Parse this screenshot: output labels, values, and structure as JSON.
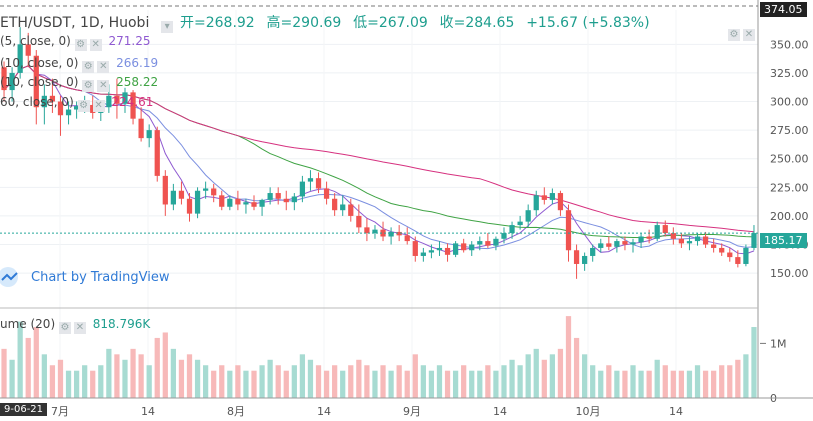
{
  "header": {
    "symbol": "ETH/USDT, 1D, Huobi",
    "open": "开=268.92",
    "high": "高=290.69",
    "low": "低=267.09",
    "close": "收=284.65",
    "change": "+15.67 (+5.83%)"
  },
  "indicators": [
    {
      "label": "(5, close, 0)",
      "value": "271.25",
      "color": "#8f5ad1"
    },
    {
      "label": "(10, close, 0)",
      "value": "266.19",
      "color": "#7b8fe0"
    },
    {
      "label": "(10, close, 0)",
      "value": "258.22",
      "color": "#3fa344"
    },
    {
      "label": "60, close, 0)",
      "value": "224.61",
      "color": "#d6317f"
    }
  ],
  "volume_legend": {
    "label": "ume (20)",
    "value": "818.796K"
  },
  "watermark": "Chart by TradingView",
  "price_tags": {
    "top": "374.05",
    "last": "185.17"
  },
  "date_labels": {
    "start": "9-06-21"
  },
  "colors": {
    "up": "#26a69a",
    "down": "#ef5350",
    "up_vol": "#a7dbd2",
    "down_vol": "#f7b9b9",
    "ma5": "#8f5ad1",
    "ma10": "#7b8fe0",
    "ma30": "#3fa344",
    "ma60": "#d6317f"
  },
  "chart_data": {
    "type": "candlestick",
    "title": "ETH/USDT, 1D, Huobi",
    "y_ticks": [
      "350.00",
      "325.00",
      "300.00",
      "275.00",
      "250.00",
      "225.00",
      "200.00",
      "175.00",
      "150.00"
    ],
    "y_range": [
      130,
      380
    ],
    "volume_ticks": [
      "1M",
      "0"
    ],
    "x_ticks": [
      "7月",
      "14",
      "8月",
      "14",
      "9月",
      "14",
      "10月",
      "14"
    ],
    "ohlc": [
      [
        330,
        335,
        300,
        310
      ],
      [
        310,
        330,
        300,
        325
      ],
      [
        325,
        365,
        320,
        350
      ],
      [
        350,
        360,
        330,
        340
      ],
      [
        340,
        345,
        280,
        295
      ],
      [
        295,
        315,
        280,
        305
      ],
      [
        305,
        320,
        290,
        300
      ],
      [
        300,
        305,
        270,
        288
      ],
      [
        288,
        300,
        280,
        293
      ],
      [
        293,
        300,
        285,
        296
      ],
      [
        296,
        305,
        290,
        297
      ],
      [
        297,
        305,
        285,
        290
      ],
      [
        290,
        300,
        283,
        295
      ],
      [
        295,
        315,
        290,
        305
      ],
      [
        305,
        320,
        285,
        298
      ],
      [
        298,
        312,
        290,
        308
      ],
      [
        308,
        310,
        280,
        285
      ],
      [
        285,
        295,
        265,
        268
      ],
      [
        268,
        280,
        260,
        275
      ],
      [
        275,
        278,
        230,
        235
      ],
      [
        235,
        240,
        200,
        210
      ],
      [
        210,
        228,
        205,
        222
      ],
      [
        222,
        230,
        210,
        215
      ],
      [
        215,
        220,
        195,
        202
      ],
      [
        202,
        225,
        198,
        222
      ],
      [
        222,
        230,
        215,
        224
      ],
      [
        224,
        228,
        212,
        218
      ],
      [
        218,
        222,
        205,
        208
      ],
      [
        208,
        218,
        205,
        215
      ],
      [
        215,
        222,
        205,
        210
      ],
      [
        210,
        215,
        202,
        212
      ],
      [
        212,
        218,
        205,
        208
      ],
      [
        208,
        215,
        200,
        214
      ],
      [
        214,
        225,
        210,
        220
      ],
      [
        220,
        225,
        210,
        215
      ],
      [
        215,
        222,
        205,
        212
      ],
      [
        212,
        220,
        205,
        217
      ],
      [
        217,
        235,
        212,
        230
      ],
      [
        230,
        240,
        222,
        233
      ],
      [
        233,
        238,
        220,
        224
      ],
      [
        224,
        230,
        210,
        215
      ],
      [
        215,
        220,
        200,
        205
      ],
      [
        205,
        218,
        200,
        210
      ],
      [
        210,
        215,
        195,
        200
      ],
      [
        200,
        210,
        185,
        190
      ],
      [
        190,
        198,
        178,
        185
      ],
      [
        185,
        192,
        180,
        188
      ],
      [
        188,
        195,
        178,
        182
      ],
      [
        182,
        190,
        175,
        186
      ],
      [
        186,
        192,
        178,
        183
      ],
      [
        183,
        190,
        175,
        178
      ],
      [
        178,
        182,
        160,
        165
      ],
      [
        165,
        172,
        160,
        168
      ],
      [
        168,
        175,
        163,
        170
      ],
      [
        170,
        178,
        165,
        172
      ],
      [
        172,
        176,
        160,
        166
      ],
      [
        166,
        178,
        164,
        176
      ],
      [
        176,
        180,
        168,
        170
      ],
      [
        170,
        178,
        165,
        175
      ],
      [
        175,
        182,
        170,
        178
      ],
      [
        178,
        185,
        172,
        174
      ],
      [
        174,
        182,
        170,
        180
      ],
      [
        180,
        190,
        176,
        185
      ],
      [
        185,
        195,
        180,
        192
      ],
      [
        192,
        200,
        188,
        195
      ],
      [
        195,
        210,
        190,
        205
      ],
      [
        205,
        222,
        200,
        218
      ],
      [
        218,
        225,
        210,
        214
      ],
      [
        214,
        224,
        210,
        220
      ],
      [
        220,
        222,
        200,
        205
      ],
      [
        205,
        210,
        160,
        170
      ],
      [
        170,
        175,
        145,
        158
      ],
      [
        158,
        168,
        152,
        165
      ],
      [
        165,
        175,
        160,
        172
      ],
      [
        172,
        180,
        168,
        176
      ],
      [
        176,
        182,
        170,
        173
      ],
      [
        173,
        180,
        168,
        178
      ],
      [
        178,
        182,
        170,
        175
      ],
      [
        175,
        180,
        168,
        177
      ],
      [
        177,
        185,
        172,
        182
      ],
      [
        182,
        188,
        176,
        180
      ],
      [
        180,
        195,
        178,
        192
      ],
      [
        192,
        196,
        182,
        185
      ],
      [
        185,
        190,
        175,
        180
      ],
      [
        180,
        185,
        172,
        176
      ],
      [
        176,
        182,
        170,
        178
      ],
      [
        178,
        185,
        174,
        182
      ],
      [
        182,
        186,
        172,
        175
      ],
      [
        175,
        180,
        168,
        172
      ],
      [
        172,
        176,
        165,
        168
      ],
      [
        168,
        172,
        160,
        164
      ],
      [
        164,
        170,
        155,
        158
      ],
      [
        158,
        175,
        156,
        172
      ],
      [
        172,
        192,
        170,
        185
      ]
    ],
    "volume": [
      0.9,
      0.7,
      1.4,
      1.1,
      1.3,
      0.8,
      0.6,
      0.7,
      0.5,
      0.5,
      0.6,
      0.5,
      0.6,
      0.9,
      0.8,
      0.7,
      0.9,
      0.8,
      0.6,
      1.1,
      1.2,
      0.9,
      0.7,
      0.8,
      0.7,
      0.6,
      0.5,
      0.6,
      0.5,
      0.6,
      0.5,
      0.5,
      0.6,
      0.7,
      0.6,
      0.5,
      0.6,
      0.8,
      0.7,
      0.6,
      0.5,
      0.6,
      0.5,
      0.6,
      0.7,
      0.6,
      0.5,
      0.6,
      0.5,
      0.6,
      0.5,
      0.8,
      0.6,
      0.5,
      0.6,
      0.5,
      0.5,
      0.6,
      0.5,
      0.5,
      0.6,
      0.5,
      0.6,
      0.7,
      0.6,
      0.8,
      0.9,
      0.7,
      0.8,
      0.9,
      1.5,
      1.1,
      0.8,
      0.6,
      0.5,
      0.6,
      0.5,
      0.5,
      0.6,
      0.5,
      0.5,
      0.7,
      0.6,
      0.5,
      0.5,
      0.5,
      0.6,
      0.5,
      0.5,
      0.6,
      0.6,
      0.7,
      0.8,
      1.3
    ]
  }
}
